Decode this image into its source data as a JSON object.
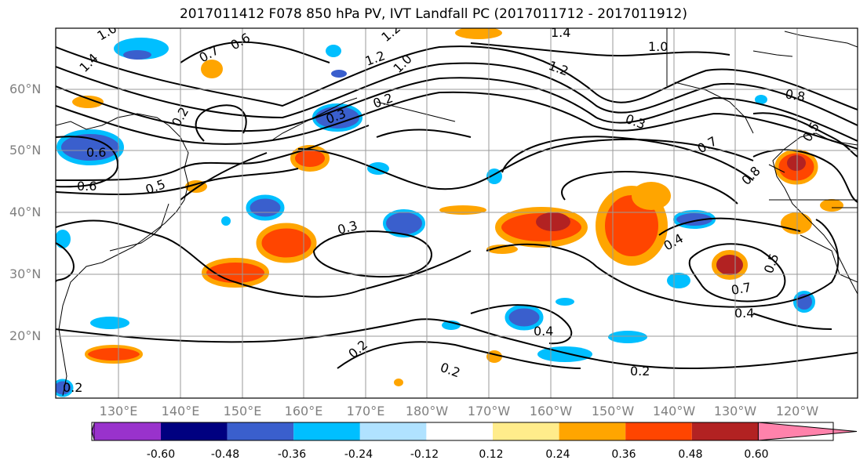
{
  "title": "2017011412 F078 850 hPa PV, IVT Landfall PC (2017011712 - 2017011912)",
  "map": {
    "lat_labels": [
      "60°N",
      "50°N",
      "40°N",
      "30°N",
      "20°N"
    ],
    "lon_labels": [
      "130°E",
      "140°E",
      "150°E",
      "160°E",
      "170°E",
      "180°W",
      "170°W",
      "160°W",
      "150°W",
      "140°W",
      "130°W",
      "120°W"
    ],
    "contour_labels": [
      "1.0",
      "0.6",
      "1.4",
      "0.7",
      "1.2",
      "1.0",
      "1.2",
      "1.4",
      "1.2",
      "1.0",
      "0.2",
      "0.3",
      "0.3",
      "0.8",
      "0.5",
      "0.7",
      "0.8",
      "0.6",
      "0.6",
      "0.5",
      "0.3",
      "0.4",
      "0.5",
      "0.7",
      "0.4",
      "0.4",
      "0.2",
      "0.2",
      "0.2",
      "0.2",
      "0.2"
    ],
    "grid": true,
    "background": "#ffffff"
  },
  "colorbar": {
    "levels": [
      "-0.60",
      "-0.48",
      "-0.36",
      "-0.24",
      "-0.12",
      "0.12",
      "0.24",
      "0.36",
      "0.48",
      "0.60"
    ],
    "colors": [
      "#9932CC",
      "#000080",
      "#3A5FCD",
      "#00BFFF",
      "#B0E2FF",
      "#FFFFFF",
      "#FFEC8B",
      "#FFA500",
      "#FF4500",
      "#B22222",
      "#FF82AB"
    ]
  }
}
